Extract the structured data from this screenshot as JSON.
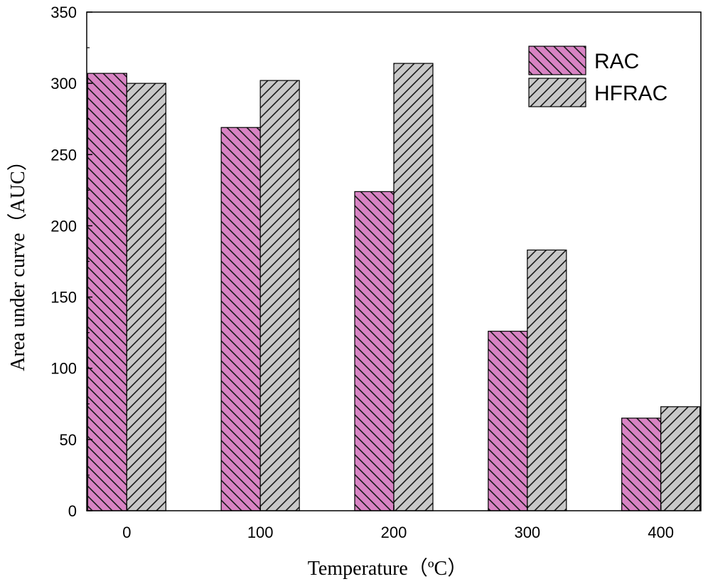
{
  "chart_data": {
    "type": "bar",
    "categories": [
      "0",
      "100",
      "200",
      "300",
      "400"
    ],
    "x": [
      0,
      100,
      200,
      300,
      400
    ],
    "series": [
      {
        "name": "RAC",
        "values": [
          307,
          269,
          224,
          126,
          65
        ],
        "color": "#d883c3",
        "hatch": "backslash"
      },
      {
        "name": "HFRAC",
        "values": [
          300,
          302,
          314,
          183,
          73
        ],
        "color": "#c8c8c8",
        "hatch": "forward-slash"
      }
    ],
    "xlabel": "Temperature（ºC）",
    "ylabel": "Area under curve（AUC）",
    "ylim": [
      0,
      350
    ],
    "yticks": [
      0,
      50,
      100,
      150,
      200,
      250,
      300,
      350
    ],
    "xlim": [
      -30,
      430
    ],
    "legend_position": "top-right",
    "grid": false
  }
}
